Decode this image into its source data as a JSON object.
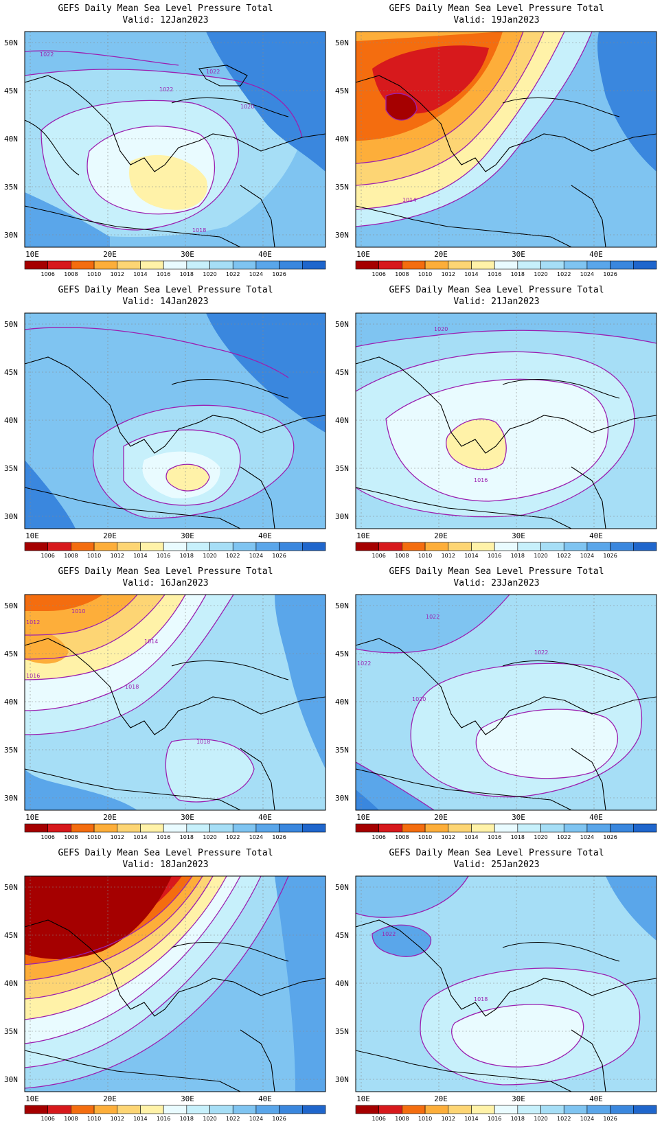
{
  "colorbar": {
    "colors": [
      "#a50000",
      "#d7191c",
      "#f46d0f",
      "#fdae3a",
      "#fdd574",
      "#fff2a8",
      "#e9fbff",
      "#c7f0fb",
      "#a6def6",
      "#7fc4f1",
      "#5aa6ea",
      "#3a87de",
      "#1f66cc"
    ],
    "labels": [
      "1006",
      "1008",
      "1010",
      "1012",
      "1014",
      "1016",
      "1018",
      "1020",
      "1022",
      "1024",
      "1026"
    ]
  },
  "axes": {
    "lon_ticks": [
      "10E",
      "20E",
      "30E",
      "40E"
    ],
    "lat_ticks": [
      "50N",
      "45N",
      "40N",
      "35N",
      "30N"
    ]
  },
  "panels": [
    {
      "id": "p1",
      "title": "GEFS Daily Mean Sea Level Pressure Total",
      "valid": "Valid:  12Jan2023",
      "contour_labels": [
        "1022",
        "1022",
        "1020",
        "1018",
        "1022"
      ]
    },
    {
      "id": "p2",
      "title": "GEFS Daily Mean Sea Level Pressure Total",
      "valid": "Valid:  19Jan2023",
      "contour_labels": [
        "1014"
      ]
    },
    {
      "id": "p3",
      "title": "GEFS Daily Mean Sea Level Pressure Total",
      "valid": "Valid:  14Jan2023",
      "contour_labels": []
    },
    {
      "id": "p4",
      "title": "GEFS Daily Mean Sea Level Pressure Total",
      "valid": "Valid:  21Jan2023",
      "contour_labels": [
        "1020",
        "1016"
      ]
    },
    {
      "id": "p5",
      "title": "GEFS Daily Mean Sea Level Pressure Total",
      "valid": "Valid:  16Jan2023",
      "contour_labels": [
        "1010",
        "1012",
        "1014",
        "1018",
        "1018",
        "1016"
      ]
    },
    {
      "id": "p6",
      "title": "GEFS Daily Mean Sea Level Pressure Total",
      "valid": "Valid:  23Jan2023",
      "contour_labels": [
        "1022",
        "1022",
        "1022",
        "1020"
      ]
    },
    {
      "id": "p7",
      "title": "GEFS Daily Mean Sea Level Pressure Total",
      "valid": "Valid:  18Jan2023",
      "contour_labels": []
    },
    {
      "id": "p8",
      "title": "GEFS Daily Mean Sea Level Pressure Total",
      "valid": "Valid:  25Jan2023",
      "contour_labels": [
        "1022",
        "1018"
      ]
    }
  ]
}
